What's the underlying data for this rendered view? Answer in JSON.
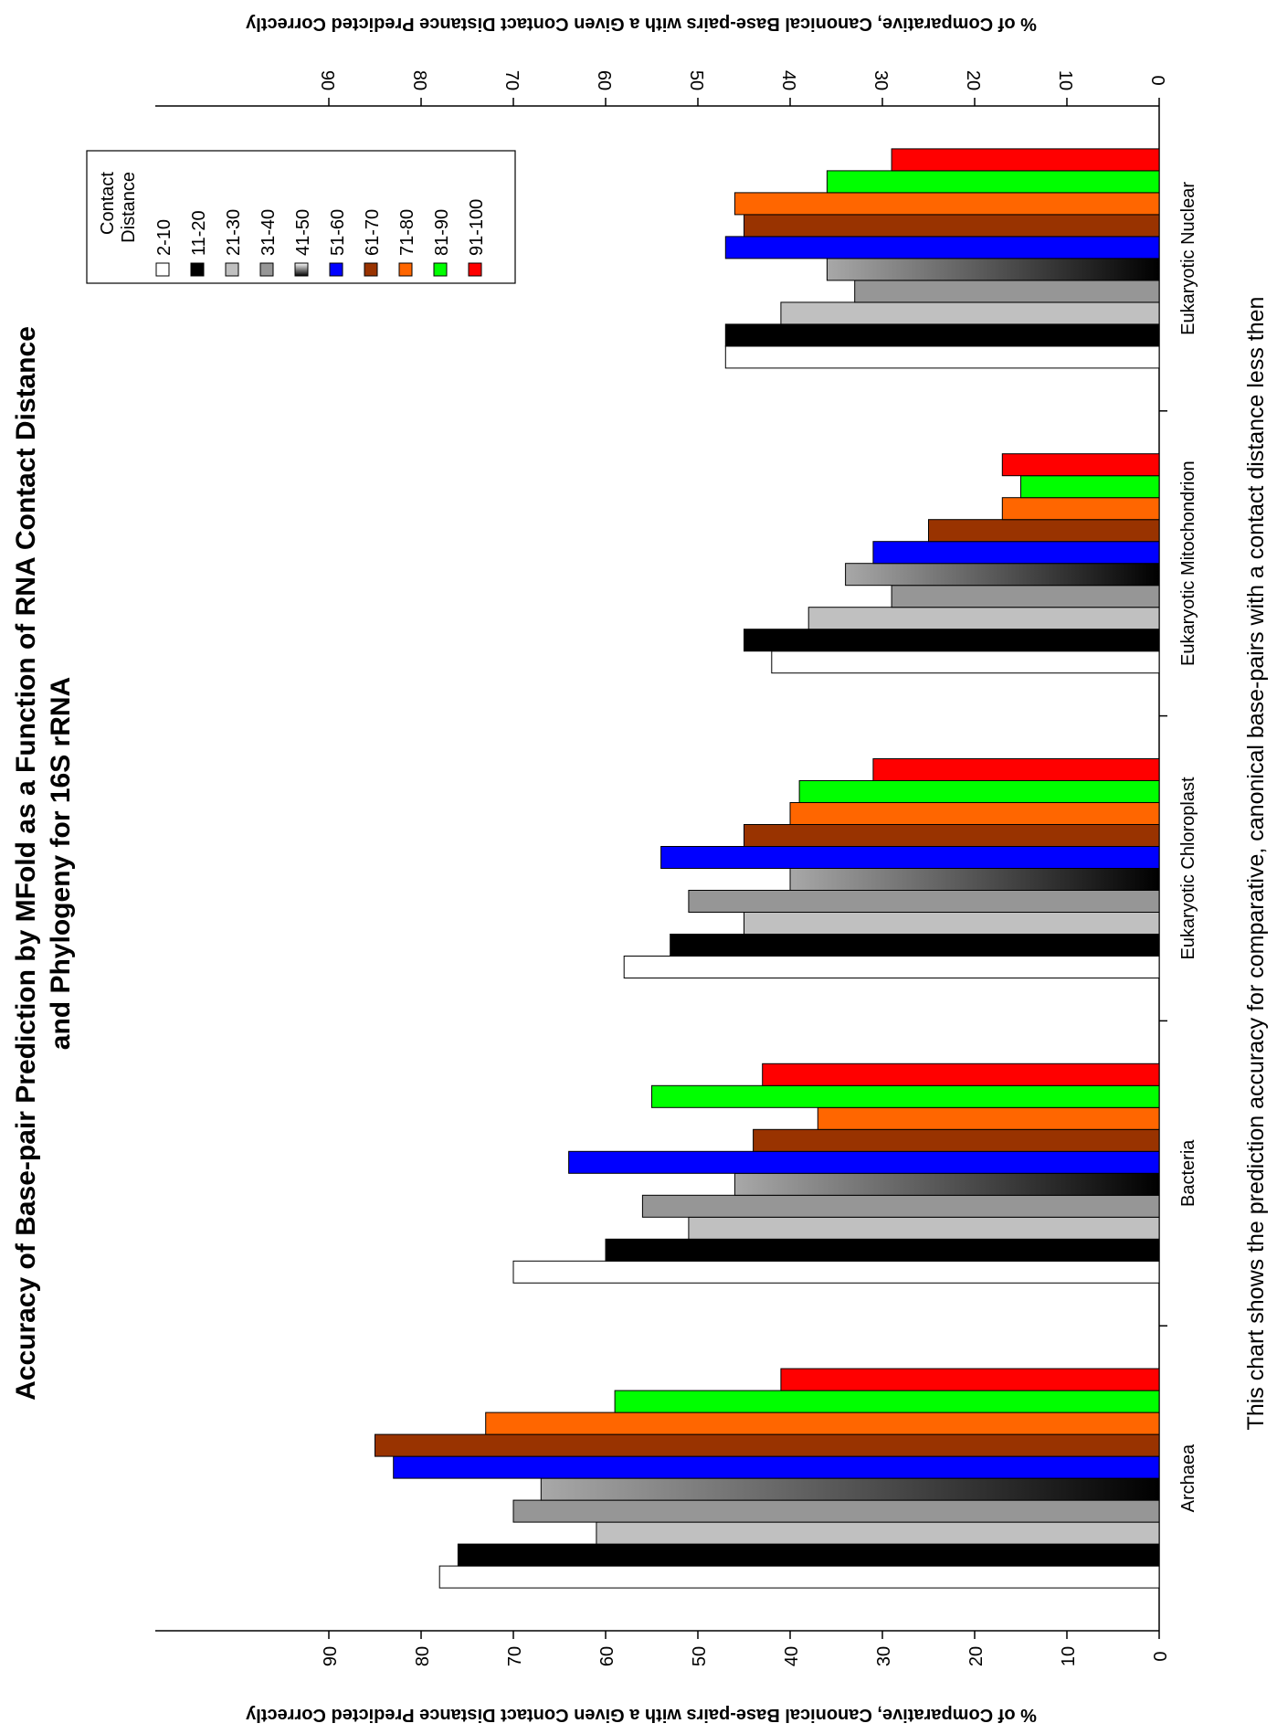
{
  "chart_data": {
    "type": "bar",
    "orientation": "horizontal",
    "title": "Accuracy of Base-pair Prediction by MFold  as a Function of RNA Contact Distance",
    "subtitle": "and Phylogeny for 16S rRNA",
    "ylabel": "% of Comparative, Canonical Base-pairs with a Given Contact Distance Predicted Correctly",
    "caption": "This chart shows the prediction accuracy for comparative, canonical base-pairs with a contact distance less then",
    "categories": [
      "Archaea",
      "Bacteria",
      "Eukaryotic Chloroplast",
      "Eukaryotic Mitochondrion",
      "Eukaryotic Nuclear"
    ],
    "ylim": [
      0,
      90
    ],
    "ticks": [
      0,
      10,
      20,
      30,
      40,
      50,
      60,
      70,
      80,
      90
    ],
    "grid": false,
    "legend_title": [
      "Contact",
      "Distance"
    ],
    "legend_position": "top-right",
    "series": [
      {
        "name": "2-10",
        "color": "#ffffff",
        "values": [
          78,
          70,
          58,
          42,
          47
        ]
      },
      {
        "name": "11-20",
        "color": "#000000",
        "values": [
          76,
          60,
          53,
          45,
          47
        ]
      },
      {
        "name": "21-30",
        "color": "#c0c0c0",
        "values": [
          61,
          51,
          45,
          38,
          41
        ]
      },
      {
        "name": "31-40",
        "color": "#969696",
        "values": [
          70,
          56,
          51,
          29,
          33
        ]
      },
      {
        "name": "41-50",
        "color": "gradient-gray-black",
        "values": [
          67,
          46,
          40,
          34,
          36
        ]
      },
      {
        "name": "51-60",
        "color": "#0000ff",
        "values": [
          83,
          64,
          54,
          31,
          47
        ]
      },
      {
        "name": "61-70",
        "color": "#993300",
        "values": [
          85,
          44,
          45,
          25,
          45
        ]
      },
      {
        "name": "71-80",
        "color": "#ff6600",
        "values": [
          73,
          37,
          40,
          17,
          46
        ]
      },
      {
        "name": "81-90",
        "color": "#00ff00",
        "values": [
          59,
          55,
          39,
          15,
          36
        ]
      },
      {
        "name": "91-100",
        "color": "#ff0000",
        "values": [
          41,
          43,
          31,
          17,
          29
        ]
      }
    ]
  }
}
